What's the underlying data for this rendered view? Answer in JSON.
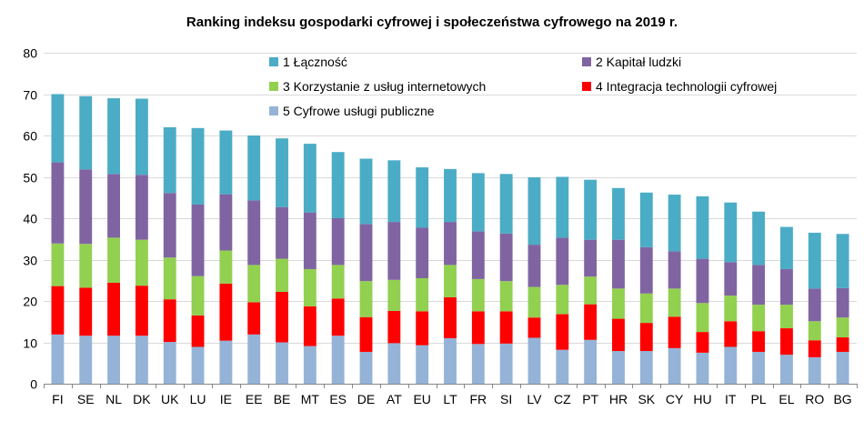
{
  "chart_data": {
    "type": "bar",
    "stacked": true,
    "title": "Ranking indeksu gospodarki cyfrowej i społeczeństwa cyfrowego na 2019 r.",
    "xlabel": "",
    "ylabel": "",
    "ylim": [
      0,
      80
    ],
    "yticks": [
      0,
      10,
      20,
      30,
      40,
      50,
      60,
      70,
      80
    ],
    "grid": true,
    "legend_position": "top-right",
    "categories": [
      "FI",
      "SE",
      "NL",
      "DK",
      "UK",
      "LU",
      "IE",
      "EE",
      "BE",
      "MT",
      "ES",
      "DE",
      "AT",
      "EU",
      "LT",
      "FR",
      "SI",
      "LV",
      "CZ",
      "PT",
      "HR",
      "SK",
      "CY",
      "HU",
      "IT",
      "PL",
      "EL",
      "RO",
      "BG"
    ],
    "series": [
      {
        "name": "5 Cyfrowe usługi publiczne",
        "color": "#95B3D7",
        "values": [
          11.9,
          11.6,
          11.6,
          11.6,
          10.1,
          8.9,
          10.4,
          11.9,
          10.0,
          9.1,
          11.6,
          7.7,
          9.8,
          9.3,
          11.0,
          9.6,
          9.7,
          11.1,
          8.2,
          10.6,
          7.9,
          7.9,
          8.6,
          7.5,
          8.9,
          7.7,
          7.0,
          6.4,
          7.7
        ]
      },
      {
        "name": "4 Integracja technologii cyfrowej",
        "color": "#FF0000",
        "values": [
          11.7,
          11.6,
          12.8,
          12.1,
          10.3,
          7.6,
          13.8,
          7.8,
          12.2,
          9.6,
          9.0,
          8.4,
          7.8,
          8.2,
          9.9,
          7.9,
          7.8,
          4.9,
          8.6,
          8.6,
          7.8,
          6.8,
          7.6,
          5.0,
          6.2,
          5.0,
          6.4,
          4.1,
          3.5
        ]
      },
      {
        "name": "3 Korzystanie z usług internetowych",
        "color": "#92D050",
        "values": [
          10.3,
          10.6,
          10.9,
          11.1,
          10.1,
          9.5,
          8.0,
          9.0,
          8.0,
          9.0,
          8.1,
          8.7,
          7.5,
          8.0,
          7.8,
          7.8,
          7.3,
          7.4,
          7.1,
          6.7,
          7.3,
          7.1,
          6.8,
          7.0,
          6.2,
          6.4,
          5.7,
          4.6,
          4.8
        ]
      },
      {
        "name": "2 Kapitał ludzki",
        "color": "#8064A2",
        "values": [
          19.6,
          18.0,
          15.4,
          15.7,
          15.6,
          17.3,
          13.6,
          15.6,
          12.5,
          13.7,
          11.3,
          13.8,
          14.0,
          12.2,
          10.4,
          11.5,
          11.5,
          10.2,
          11.4,
          8.9,
          11.8,
          11.2,
          9.0,
          10.7,
          8.1,
          9.6,
          8.6,
          7.9,
          7.1
        ]
      },
      {
        "name": "1 Łączność",
        "color": "#4BACC6",
        "values": [
          16.5,
          17.7,
          18.3,
          18.4,
          15.9,
          18.5,
          15.4,
          15.7,
          16.6,
          16.6,
          16.0,
          15.8,
          14.9,
          14.6,
          12.8,
          14.1,
          14.4,
          16.3,
          14.7,
          14.5,
          12.5,
          13.2,
          13.7,
          15.1,
          14.4,
          12.9,
          10.2,
          13.5,
          13.1
        ]
      }
    ],
    "legend": [
      {
        "label": "1 Łączność",
        "color": "#4BACC6"
      },
      {
        "label": "2 Kapitał ludzki",
        "color": "#8064A2"
      },
      {
        "label": "3 Korzystanie z usług internetowych",
        "color": "#92D050"
      },
      {
        "label": "4 Integracja technologii cyfrowej",
        "color": "#FF0000"
      },
      {
        "label": "5 Cyfrowe usługi publiczne",
        "color": "#95B3D7"
      }
    ]
  }
}
